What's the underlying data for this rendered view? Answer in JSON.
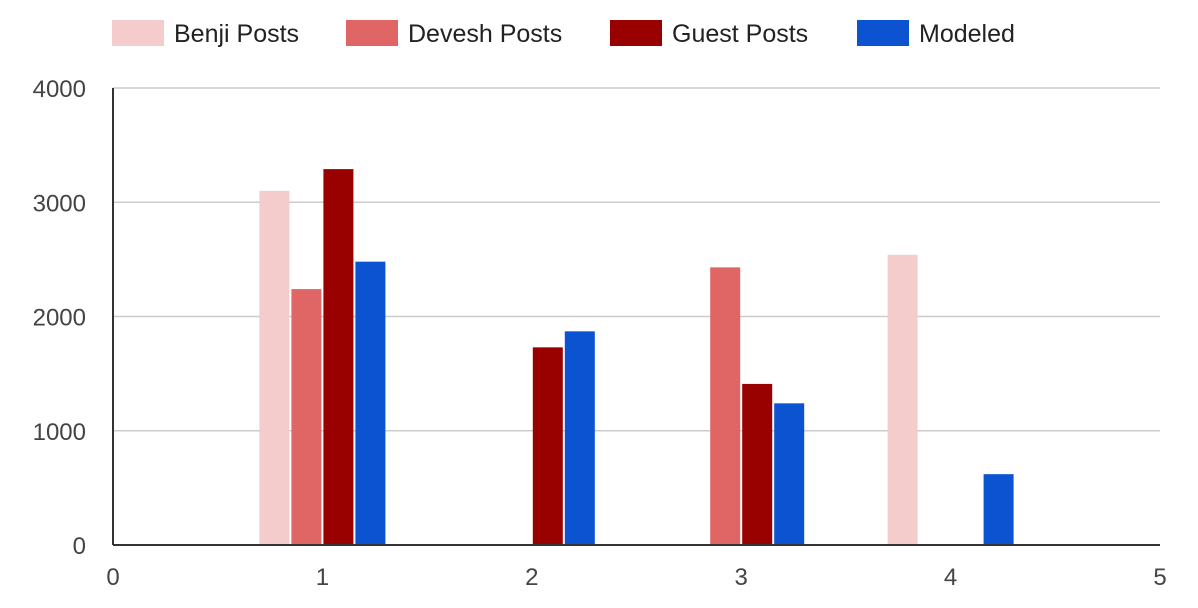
{
  "chart_data": {
    "type": "bar",
    "title": "",
    "xlabel": "",
    "ylabel": "",
    "x": [
      1,
      2,
      3,
      4
    ],
    "xlim": [
      0,
      5
    ],
    "ylim": [
      0,
      4000
    ],
    "x_ticks": [
      0,
      1,
      2,
      3,
      4,
      5
    ],
    "y_ticks": [
      0,
      1000,
      2000,
      3000,
      4000
    ],
    "grid": true,
    "legend_position": "top",
    "series": [
      {
        "name": "Benji Posts",
        "color": "#f4cccc",
        "values": [
          3100,
          null,
          null,
          2540
        ]
      },
      {
        "name": "Devesh Posts",
        "color": "#e06666",
        "values": [
          2240,
          null,
          2430,
          null
        ]
      },
      {
        "name": "Guest Posts",
        "color": "#990000",
        "values": [
          3290,
          1730,
          1410,
          null
        ]
      },
      {
        "name": "Modeled",
        "color": "#0b53d0",
        "values": [
          2480,
          1870,
          1240,
          620
        ]
      }
    ]
  }
}
